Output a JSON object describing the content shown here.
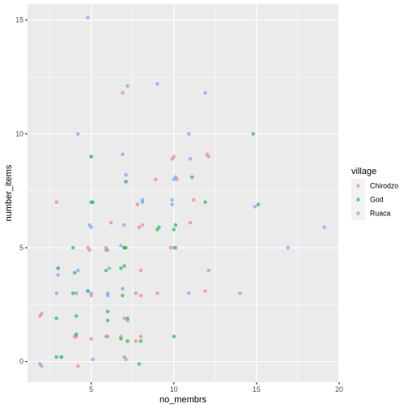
{
  "chart_data": {
    "type": "scatter",
    "xlabel": "no_membrs",
    "ylabel": "number_items",
    "xlim": [
      1.15,
      19.95
    ],
    "ylim": [
      -0.9,
      15.7
    ],
    "x_ticks": [
      5,
      10,
      15,
      20
    ],
    "y_ticks": [
      0,
      5,
      10,
      15
    ],
    "grid": true,
    "legend": {
      "title": "village",
      "position": "right",
      "entries": [
        "Chirodzo",
        "God",
        "Ruaca"
      ]
    },
    "series": [
      {
        "name": "Chirodzo",
        "color": "#F8766D",
        "points": [
          [
            1.9,
            2.0
          ],
          [
            2.0,
            2.1
          ],
          [
            2.0,
            -0.2
          ],
          [
            2.9,
            7.0
          ],
          [
            4.1,
            1.1
          ],
          [
            4.0,
            1.1
          ],
          [
            4.2,
            -0.2
          ],
          [
            4.8,
            5.0
          ],
          [
            5.0,
            1.0
          ],
          [
            5.0,
            2.9
          ],
          [
            4.9,
            4.9
          ],
          [
            5.9,
            5.0
          ],
          [
            6.0,
            1.1
          ],
          [
            6.0,
            4.9
          ],
          [
            6.2,
            6.1
          ],
          [
            6.8,
            1.1
          ],
          [
            6.9,
            11.8
          ],
          [
            7.1,
            0.1
          ],
          [
            7.0,
            1.9
          ],
          [
            7.0,
            5.0
          ],
          [
            7.7,
            0.9
          ],
          [
            7.7,
            3.0
          ],
          [
            7.9,
            5.9
          ],
          [
            7.8,
            6.9
          ],
          [
            8.0,
            1.1
          ],
          [
            8.0,
            2.9
          ],
          [
            8.0,
            4.0
          ],
          [
            8.1,
            6.0
          ],
          [
            8.9,
            8.0
          ],
          [
            9.0,
            3.0
          ],
          [
            9.9,
            8.9
          ],
          [
            10.0,
            9.0
          ],
          [
            10.2,
            8.0
          ],
          [
            11.0,
            6.1
          ],
          [
            11.2,
            7.1
          ],
          [
            11.9,
            3.1
          ],
          [
            12.0,
            9.1
          ],
          [
            12.1,
            9.0
          ],
          [
            9.8,
            5.0
          ]
        ]
      },
      {
        "name": "God",
        "color": "#00BA38",
        "points": [
          [
            2.9,
            0.2
          ],
          [
            2.9,
            1.9
          ],
          [
            3.0,
            4.1
          ],
          [
            3.9,
            3.0
          ],
          [
            3.9,
            5.0
          ],
          [
            4.0,
            3.9
          ],
          [
            4.1,
            1.2
          ],
          [
            4.1,
            2.0
          ],
          [
            4.8,
            3.1
          ],
          [
            5.0,
            7.0
          ],
          [
            5.0,
            9.0
          ],
          [
            5.1,
            7.0
          ],
          [
            5.9,
            4.0
          ],
          [
            6.0,
            2.2
          ],
          [
            6.0,
            1.8
          ],
          [
            6.8,
            1.0
          ],
          [
            6.8,
            4.1
          ],
          [
            6.9,
            2.9
          ],
          [
            7.0,
            5.0
          ],
          [
            7.0,
            4.2
          ],
          [
            7.1,
            7.9
          ],
          [
            7.2,
            1.9
          ],
          [
            7.2,
            0.9
          ],
          [
            7.1,
            5.0
          ],
          [
            7.9,
            -0.1
          ],
          [
            8.0,
            0.9
          ],
          [
            9.0,
            5.8
          ],
          [
            9.1,
            5.9
          ],
          [
            10.0,
            1.1
          ],
          [
            10.0,
            5.8
          ],
          [
            10.1,
            5.0
          ],
          [
            10.1,
            6.0
          ],
          [
            11.1,
            8.1
          ],
          [
            11.9,
            7.0
          ],
          [
            14.8,
            10.0
          ],
          [
            15.1,
            6.9
          ],
          [
            3.2,
            0.2
          ]
        ]
      },
      {
        "name": "Ruaca",
        "color": "#619CFF",
        "points": [
          [
            1.9,
            -0.1
          ],
          [
            2.9,
            3.0
          ],
          [
            3.0,
            4.1
          ],
          [
            3.2,
            0.2
          ],
          [
            3.0,
            3.8
          ],
          [
            4.1,
            3.0
          ],
          [
            4.2,
            4.0
          ],
          [
            4.2,
            10.0
          ],
          [
            4.8,
            15.1
          ],
          [
            4.8,
            3.1
          ],
          [
            4.9,
            6.0
          ],
          [
            5.0,
            9.0
          ],
          [
            5.0,
            3.0
          ],
          [
            5.1,
            0.1
          ],
          [
            5.0,
            5.9
          ],
          [
            5.9,
            4.9
          ],
          [
            5.9,
            1.1
          ],
          [
            6.0,
            3.0
          ],
          [
            6.1,
            4.1
          ],
          [
            6.8,
            5.1
          ],
          [
            6.9,
            9.1
          ],
          [
            6.9,
            3.2
          ],
          [
            7.0,
            6.0
          ],
          [
            7.1,
            7.9
          ],
          [
            7.1,
            8.2
          ],
          [
            7.2,
            12.1
          ],
          [
            7.2,
            1.8
          ],
          [
            7.0,
            0.2
          ],
          [
            8.1,
            7.0
          ],
          [
            8.1,
            7.1
          ],
          [
            9.0,
            12.2
          ],
          [
            9.9,
            6.9
          ],
          [
            9.9,
            7.1
          ],
          [
            10.0,
            5.0
          ],
          [
            10.0,
            8.0
          ],
          [
            10.1,
            8.1
          ],
          [
            10.9,
            3.0
          ],
          [
            10.9,
            10.0
          ],
          [
            11.0,
            8.9
          ],
          [
            11.9,
            11.8
          ],
          [
            12.1,
            4.0
          ],
          [
            14.0,
            3.0
          ],
          [
            16.9,
            5.0
          ],
          [
            19.1,
            5.9
          ],
          [
            14.9,
            6.8
          ],
          [
            6.0,
            2.9
          ]
        ]
      }
    ]
  },
  "colors": {
    "panel_background": "#EBEBEB",
    "grid_major": "#FFFFFF",
    "legend_key_background": "#F2F2F2",
    "point_alpha": 0.6
  }
}
